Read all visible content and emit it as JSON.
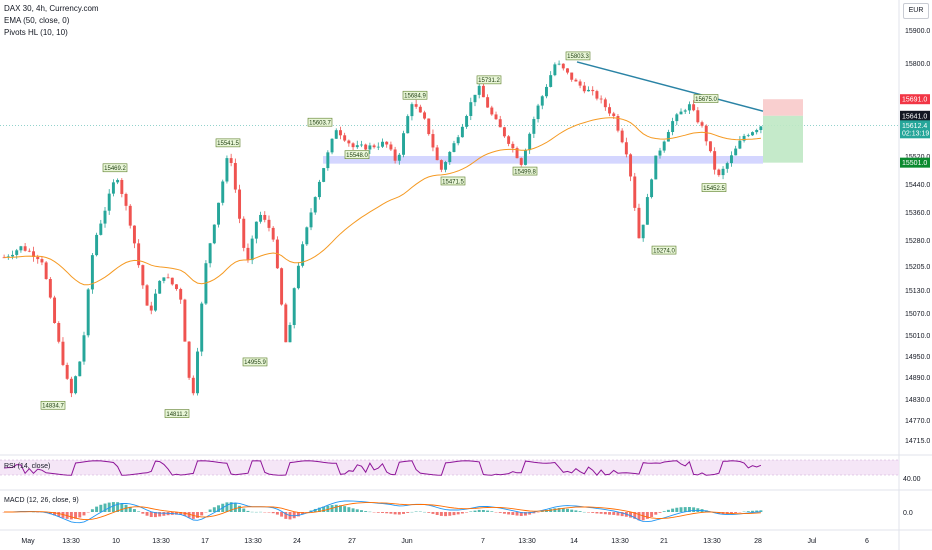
{
  "legend": {
    "title": "DAX 30, 4h, Currency.com",
    "ema": "EMA (50, close, 0)",
    "pivots": "Pivots HL (10, 10)"
  },
  "currency_button": "EUR",
  "rsi_legend": "RSI (14, close)",
  "macd_legend": "MACD (12, 26, close, 9)",
  "colors": {
    "up": "#26a69a",
    "down": "#ef5350",
    "ema": "#f59a23",
    "rsi": "#8e1599",
    "macd": "#2196f3",
    "signal": "#ff6d00",
    "support_zone": "#c5c8ff",
    "trendline": "#2a83a5"
  },
  "chart_data": {
    "type": "candlestick",
    "symbol": "DAX 30",
    "timeframe": "4h",
    "source": "Currency.com",
    "currency": "EUR",
    "y_axis_ticks": [
      15900.0,
      15800.0,
      15520.0,
      15440.0,
      15360.0,
      15280.0,
      15205.0,
      15130.0,
      15070.0,
      15010.0,
      14950.0,
      14890.0,
      14830.0,
      14770.0,
      14715.0
    ],
    "x_axis_labels": [
      "May",
      "13:30",
      "10",
      "13:30",
      "17",
      "13:30",
      "24",
      "27",
      "Jun",
      "7",
      "13:30",
      "14",
      "13:30",
      "21",
      "13:30",
      "28",
      "Jul",
      "6"
    ],
    "price_labels": {
      "target_high": "15691.0",
      "current_ref": "15641.0",
      "last_price": "15612.4",
      "countdown": "02:13:19",
      "stop_low": "15501.0"
    },
    "pivot_labels": [
      "14834.7",
      "15469.2",
      "14811.2",
      "15541.5",
      "14955.9",
      "15603.7",
      "15548.0",
      "15684.9",
      "15471.5",
      "15731.2",
      "15499.8",
      "15803.3",
      "15274.0",
      "15675.0",
      "15452.5"
    ],
    "support_zone": [
      15501.0,
      15520.0
    ],
    "trendline": [
      {
        "from": 15803.3
      },
      {
        "to": 15655.0
      }
    ],
    "rsi": {
      "label": "RSI (14, close)",
      "level": "40.00"
    },
    "macd": {
      "label": "MACD (12, 26, close, 9)",
      "level": "0.0"
    }
  }
}
